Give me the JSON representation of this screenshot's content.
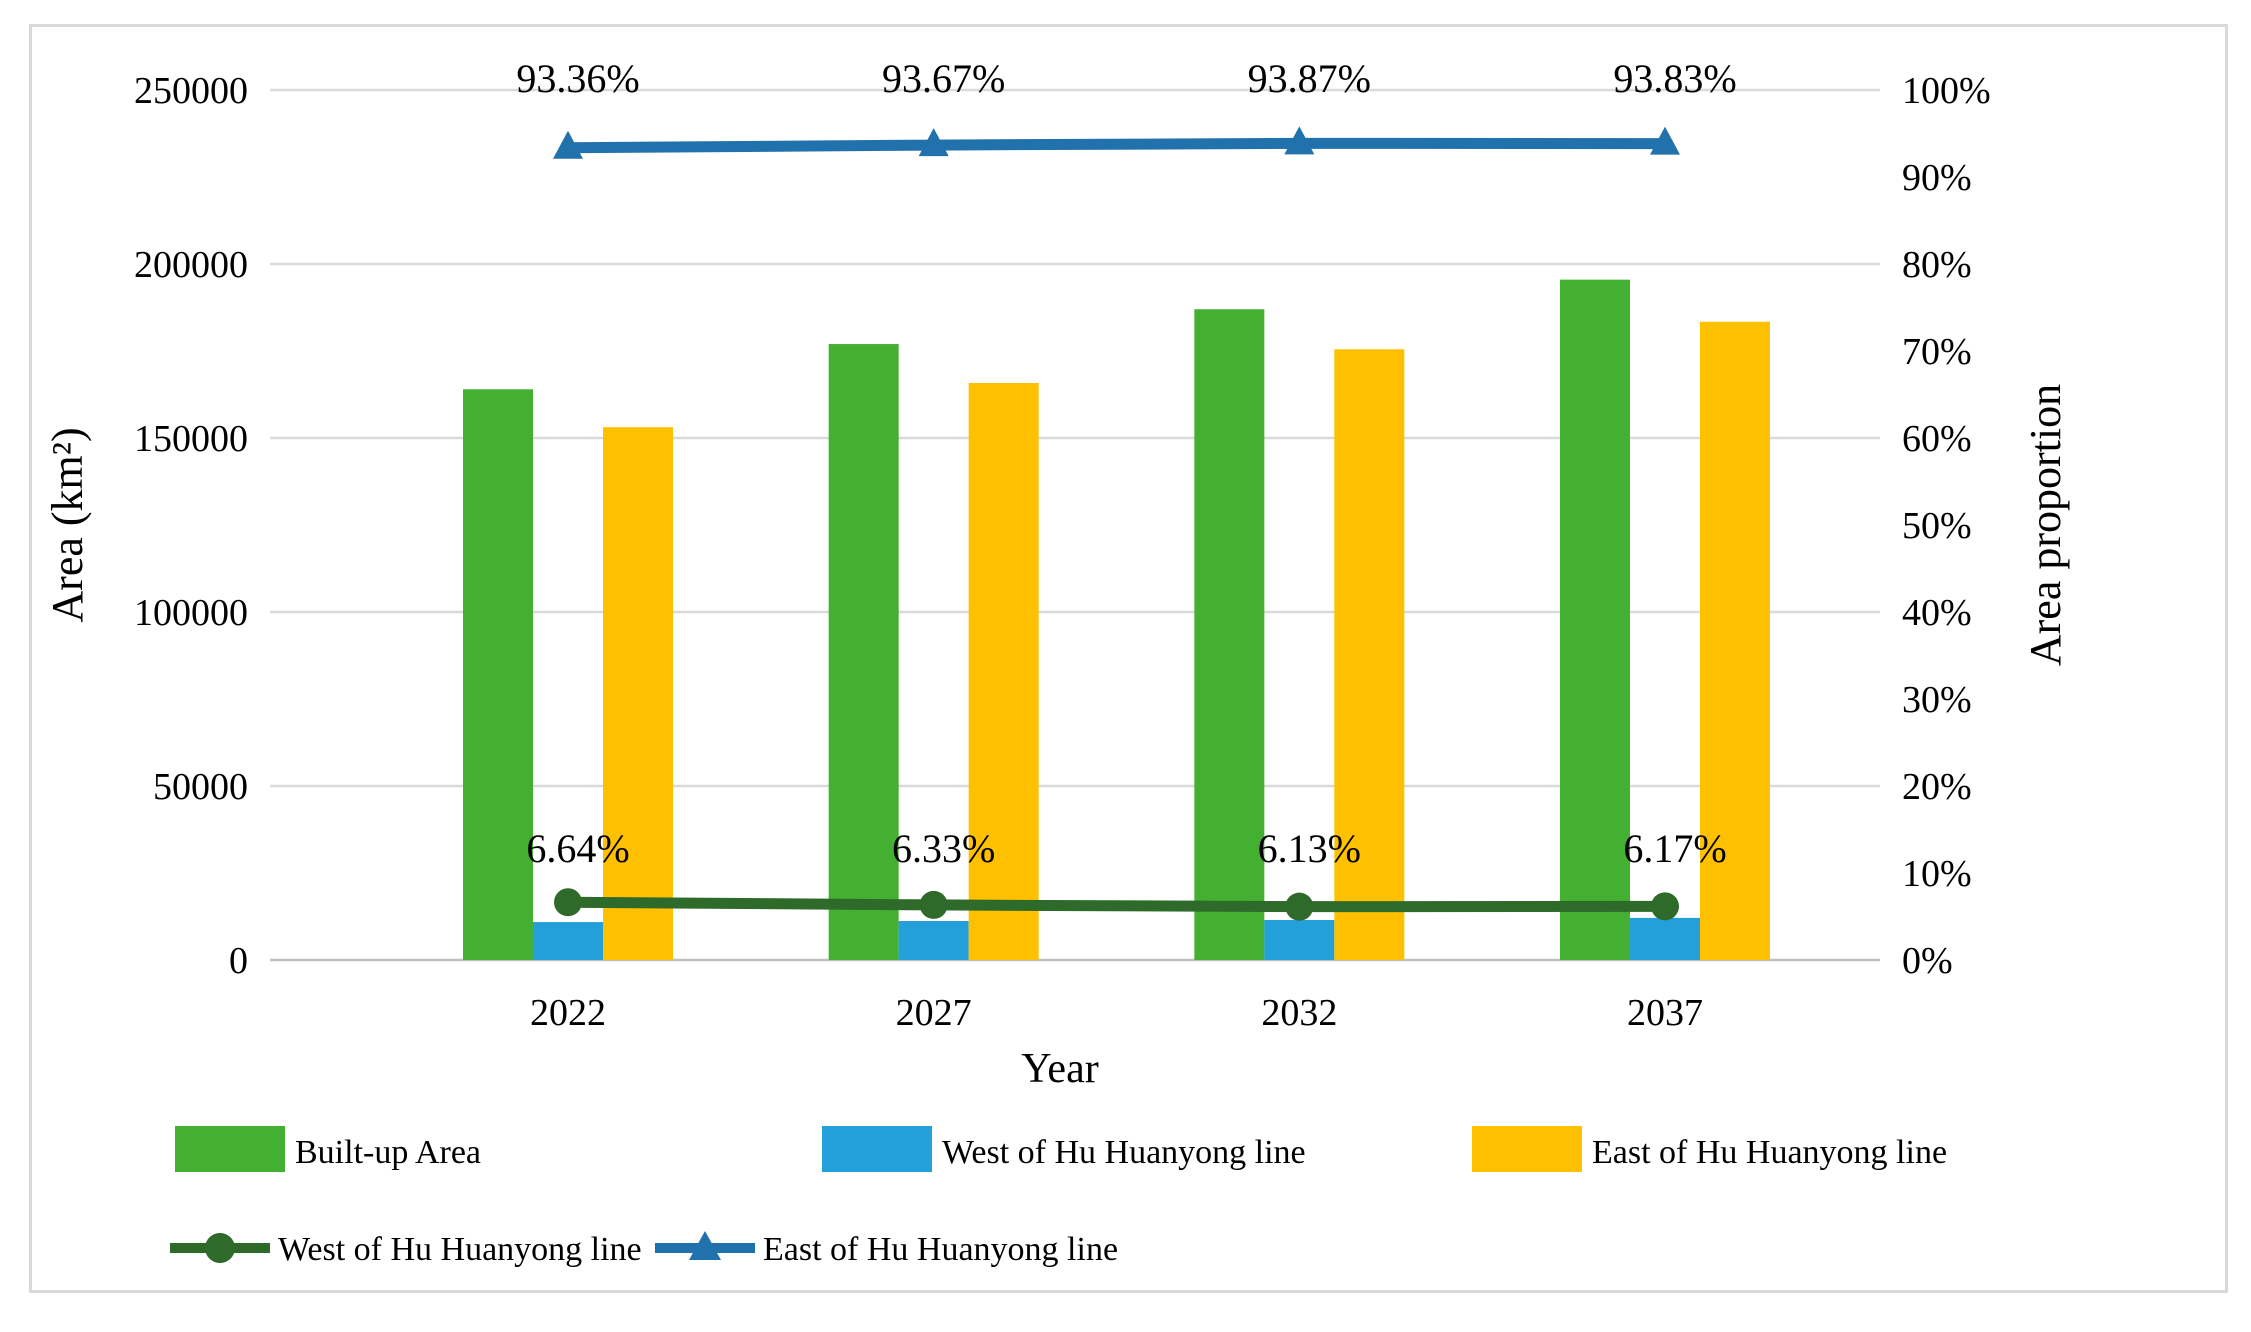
{
  "figure": {
    "background": "#ffffff",
    "frame_border_color": "#d9d9d9",
    "grid_color": "#d9d9d9",
    "axis_line_color": "#bfbfbf",
    "text_color": "#000000"
  },
  "chart_data": {
    "type": "combo-bar-line",
    "categories": [
      "2022",
      "2027",
      "2032",
      "2037"
    ],
    "x_axis": {
      "title": "Year"
    },
    "left_axis": {
      "title": "Area (km²)",
      "min": 0,
      "max": 250000,
      "step": 50000,
      "tick_labels": [
        "0",
        "50000",
        "100000",
        "150000",
        "200000",
        "250000"
      ]
    },
    "right_axis": {
      "title": "Area proportion",
      "min": 0,
      "max": 100,
      "step": 10,
      "tick_labels": [
        "0%",
        "10%",
        "20%",
        "30%",
        "40%",
        "50%",
        "60%",
        "70%",
        "80%",
        "90%",
        "100%"
      ]
    },
    "grid": true,
    "legend_position": "bottom",
    "bar_series": [
      {
        "name": "Built-up Area",
        "color": "#44b032",
        "axis": "left",
        "values": [
          164000,
          177000,
          187000,
          195500
        ]
      },
      {
        "name": "West of Hu Huanyong line",
        "color": "#239fd9",
        "axis": "left",
        "values": [
          10900,
          11200,
          11500,
          12100
        ]
      },
      {
        "name": "East of Hu Huanyong line",
        "color": "#ffc000",
        "axis": "left",
        "values": [
          153100,
          165800,
          175500,
          183400
        ]
      }
    ],
    "line_series": [
      {
        "name": "West of Hu Huanyong line",
        "color": "#2e6a29",
        "marker": "circle",
        "axis": "right",
        "values": [
          6.64,
          6.33,
          6.13,
          6.17
        ],
        "labels": [
          "6.64%",
          "6.33%",
          "6.13%",
          "6.17%"
        ]
      },
      {
        "name": "East of Hu Huanyong line",
        "color": "#2171ad",
        "marker": "triangle",
        "axis": "right",
        "values": [
          93.36,
          93.67,
          93.87,
          93.83
        ],
        "labels": [
          "93.36%",
          "93.67%",
          "93.87%",
          "93.83%"
        ]
      }
    ]
  }
}
